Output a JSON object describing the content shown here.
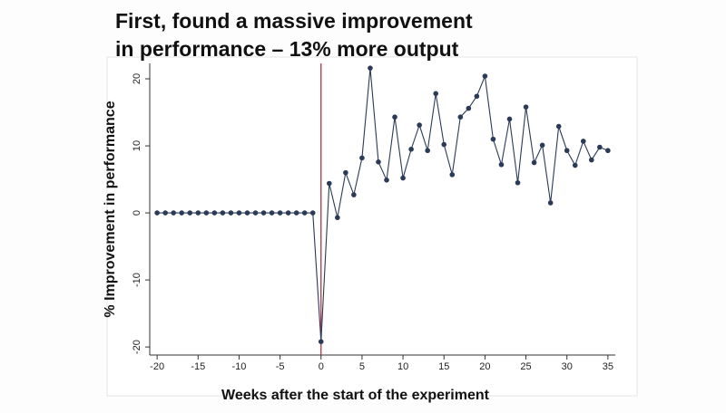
{
  "chart_data": {
    "type": "line",
    "title": "First, found a massive improvement in performance – 13% more output",
    "x_label": "Weeks after the start of the experiment",
    "y_label": "% Improvement in performance",
    "x": [
      -20,
      -19,
      -18,
      -17,
      -16,
      -15,
      -14,
      -13,
      -12,
      -11,
      -10,
      -9,
      -8,
      -7,
      -6,
      -5,
      -4,
      -3,
      -2,
      -1,
      0,
      1,
      2,
      3,
      4,
      5,
      6,
      7,
      8,
      9,
      10,
      11,
      12,
      13,
      14,
      15,
      16,
      17,
      18,
      19,
      20,
      21,
      22,
      23,
      24,
      25,
      26,
      27,
      28,
      29,
      30,
      31,
      32,
      33,
      34,
      35
    ],
    "series": [
      {
        "color": "#2b3a57",
        "values": [
          0,
          0,
          0,
          0,
          0,
          0,
          0,
          0,
          0,
          0,
          0,
          0,
          0,
          0,
          0,
          0,
          0,
          0,
          0,
          0,
          -19.2,
          4.4,
          -0.7,
          6.0,
          2.7,
          8.2,
          21.6,
          7.6,
          4.9,
          14.3,
          5.2,
          9.5,
          13.1,
          9.3,
          17.8,
          10.2,
          5.7,
          14.3,
          15.6,
          17.4,
          20.4,
          11.0,
          7.2,
          14.0,
          4.5,
          15.8,
          7.5,
          10.1,
          1.5,
          12.9,
          9.3,
          7.1,
          10.7,
          7.9,
          9.8,
          9.3
        ]
      }
    ],
    "xlim": [
      -20.9,
      35.9
    ],
    "ylim": [
      -21.2,
      22.3
    ],
    "xticks": [
      -20,
      -15,
      -10,
      -5,
      0,
      5,
      10,
      15,
      20,
      25,
      30,
      35
    ],
    "yticks": [
      -20,
      -10,
      0,
      10,
      20
    ],
    "vline": {
      "x": 0,
      "color": "#b22234"
    },
    "grid": false
  }
}
